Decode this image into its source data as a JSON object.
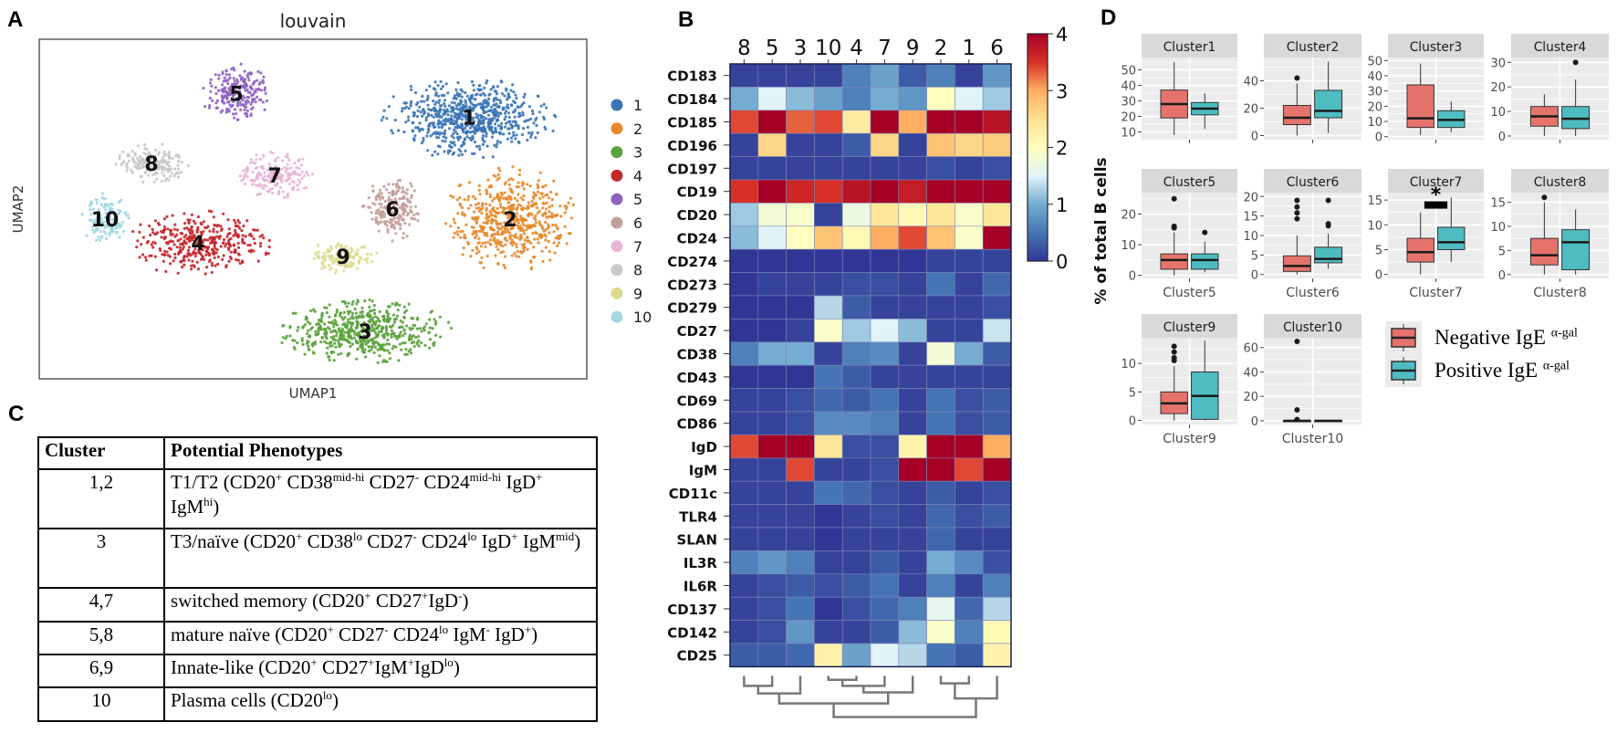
{
  "panel_labels": {
    "a": "A",
    "b": "B",
    "c": "C",
    "d": "D"
  },
  "chart_data": [
    {
      "type": "scatter",
      "panel": "A",
      "title": "louvain",
      "xlabel": "UMAP1",
      "ylabel": "UMAP2",
      "legend_position": "right",
      "clusters": [
        {
          "name": "1",
          "color": "#3b76b6",
          "center": [
            7.85,
            7.7
          ],
          "sd": [
            1.25,
            0.95
          ]
        },
        {
          "name": "2",
          "color": "#e8882a",
          "center": [
            8.6,
            4.7
          ],
          "sd": [
            0.95,
            1.2
          ]
        },
        {
          "name": "3",
          "color": "#5aa23b",
          "center": [
            5.95,
            1.4
          ],
          "sd": [
            1.25,
            0.75
          ]
        },
        {
          "name": "4",
          "color": "#c3282c",
          "center": [
            2.9,
            4.0
          ],
          "sd": [
            1.05,
            0.75
          ]
        },
        {
          "name": "5",
          "color": "#8e63c2",
          "center": [
            3.6,
            8.4
          ],
          "sd": [
            0.5,
            0.7
          ]
        },
        {
          "name": "6",
          "color": "#c4a09b",
          "center": [
            6.45,
            5.0
          ],
          "sd": [
            0.45,
            0.75
          ]
        },
        {
          "name": "7",
          "color": "#e9b5d6",
          "center": [
            4.3,
            6.0
          ],
          "sd": [
            0.55,
            0.55
          ]
        },
        {
          "name": "8",
          "color": "#c8c8c8",
          "center": [
            2.05,
            6.35
          ],
          "sd": [
            0.55,
            0.45
          ]
        },
        {
          "name": "9",
          "color": "#dcdc90",
          "center": [
            5.55,
            3.6
          ],
          "sd": [
            0.5,
            0.38
          ]
        },
        {
          "name": "10",
          "color": "#a2d8e3",
          "center": [
            1.2,
            4.7
          ],
          "sd": [
            0.35,
            0.6
          ]
        }
      ],
      "xlim": [
        0,
        10
      ],
      "ylim": [
        0,
        10
      ],
      "grid": false
    },
    {
      "type": "heatmap",
      "panel": "B",
      "columns": [
        "8",
        "5",
        "3",
        "10",
        "4",
        "7",
        "9",
        "2",
        "1",
        "6"
      ],
      "rows": [
        "CD183",
        "CD184",
        "CD185",
        "CD196",
        "CD197",
        "CD19",
        "CD20",
        "CD24",
        "CD274",
        "CD273",
        "CD279",
        "CD27",
        "CD38",
        "CD43",
        "CD69",
        "CD86",
        "IgD",
        "IgM",
        "CD11c",
        "TLR4",
        "SLAN",
        "IL3R",
        "IL6R",
        "CD137",
        "CD142",
        "CD25"
      ],
      "values": [
        [
          0.1,
          0.1,
          0.1,
          0.1,
          0.6,
          0.9,
          0.3,
          0.6,
          0.1,
          0.8
        ],
        [
          1.0,
          1.5,
          1.1,
          0.9,
          0.6,
          1.0,
          0.8,
          2.0,
          1.5,
          1.2
        ],
        [
          3.4,
          4.0,
          3.3,
          3.4,
          2.3,
          4.0,
          3.0,
          4.0,
          4.0,
          3.8
        ],
        [
          0.1,
          2.6,
          0.1,
          0.1,
          0.3,
          2.6,
          0.1,
          2.8,
          2.6,
          2.7
        ],
        [
          0.1,
          0.1,
          0.1,
          0.1,
          0.1,
          0.1,
          0.1,
          0.2,
          0.1,
          0.2
        ],
        [
          3.5,
          4.0,
          3.6,
          3.5,
          3.8,
          4.0,
          3.7,
          4.0,
          4.0,
          4.0
        ],
        [
          1.2,
          1.8,
          1.9,
          0.1,
          1.7,
          2.4,
          2.1,
          2.4,
          1.9,
          2.4
        ],
        [
          1.1,
          1.5,
          2.0,
          2.8,
          2.1,
          3.0,
          3.4,
          2.8,
          1.9,
          4.0
        ],
        [
          0.0,
          0.0,
          0.0,
          0.0,
          0.0,
          0.0,
          0.0,
          0.1,
          0.1,
          0.1
        ],
        [
          0.0,
          0.1,
          0.1,
          0.1,
          0.2,
          0.2,
          0.1,
          0.5,
          0.1,
          0.4
        ],
        [
          0.0,
          0.0,
          0.0,
          1.3,
          0.3,
          0.1,
          0.1,
          0.1,
          0.1,
          0.2
        ],
        [
          0.0,
          0.0,
          0.1,
          1.9,
          1.2,
          1.5,
          1.1,
          0.1,
          0.1,
          1.4
        ],
        [
          0.6,
          1.0,
          1.0,
          0.1,
          0.6,
          0.7,
          0.1,
          1.8,
          1.0,
          0.3
        ],
        [
          0.0,
          0.0,
          0.0,
          0.5,
          0.3,
          0.1,
          0.1,
          0.1,
          0.1,
          0.1
        ],
        [
          0.1,
          0.1,
          0.2,
          0.4,
          0.3,
          0.5,
          0.1,
          0.5,
          0.2,
          0.3
        ],
        [
          0.1,
          0.1,
          0.2,
          0.7,
          0.7,
          0.6,
          0.1,
          0.5,
          0.2,
          0.3
        ],
        [
          3.4,
          4.0,
          4.0,
          2.4,
          0.2,
          0.2,
          2.2,
          4.0,
          4.0,
          3.0
        ],
        [
          0.1,
          0.1,
          3.4,
          0.1,
          0.1,
          0.2,
          4.0,
          4.0,
          3.4,
          4.0
        ],
        [
          0.1,
          0.1,
          0.1,
          0.5,
          0.4,
          0.2,
          0.1,
          0.3,
          0.1,
          0.2
        ],
        [
          0.1,
          0.1,
          0.1,
          0.0,
          0.1,
          0.2,
          0.1,
          0.4,
          0.2,
          0.3
        ],
        [
          0.1,
          0.1,
          0.1,
          0.0,
          0.1,
          0.1,
          0.1,
          0.4,
          0.1,
          0.1
        ],
        [
          0.6,
          0.8,
          0.6,
          0.1,
          0.1,
          0.3,
          0.1,
          1.0,
          0.7,
          0.2
        ],
        [
          0.1,
          0.2,
          0.3,
          0.2,
          0.3,
          0.5,
          0.1,
          0.6,
          0.1,
          0.6
        ],
        [
          0.1,
          0.2,
          0.5,
          0.0,
          0.2,
          0.4,
          0.6,
          1.6,
          0.4,
          1.3
        ],
        [
          0.1,
          0.2,
          0.8,
          0.1,
          0.1,
          0.3,
          1.1,
          1.9,
          0.6,
          2.1
        ],
        [
          0.3,
          0.3,
          0.4,
          2.2,
          0.9,
          1.5,
          1.3,
          0.5,
          0.3,
          2.2
        ]
      ],
      "colorbar": {
        "range": [
          0,
          4
        ],
        "ticks": [
          "0",
          "1",
          "2",
          "3",
          "4"
        ],
        "colormap": "RdYlBu_r"
      },
      "dendrogram": "columns"
    },
    {
      "type": "box",
      "panel": "D",
      "ylabel": "% of total B cells",
      "groups": [
        {
          "name": "Negative IgE",
          "sup": "α-gal",
          "color": "#e5736c"
        },
        {
          "name": "Positive IgE",
          "sup": "α-gal",
          "color": "#4fbcc2"
        }
      ],
      "facets": [
        {
          "title": "Cluster1",
          "xlabel": "",
          "ylim": [
            5,
            58
          ],
          "ticks": [
            10,
            20,
            30,
            40,
            50
          ],
          "boxes": [
            {
              "min": 8,
              "q1": 19,
              "median": 28,
              "q3": 37,
              "max": 55,
              "outliers": []
            },
            {
              "min": 12,
              "q1": 21,
              "median": 25,
              "q3": 29,
              "max": 35,
              "outliers": []
            }
          ]
        },
        {
          "title": "Cluster2",
          "xlabel": "",
          "ylim": [
            -3,
            57
          ],
          "ticks": [
            0,
            20,
            40
          ],
          "boxes": [
            {
              "min": 0,
              "q1": 8,
              "median": 13,
              "q3": 22,
              "max": 38,
              "outliers": [
                42
              ]
            },
            {
              "min": 2,
              "q1": 13,
              "median": 18,
              "q3": 33,
              "max": 54,
              "outliers": []
            }
          ]
        },
        {
          "title": "Cluster3",
          "xlabel": "",
          "ylim": [
            -2,
            52
          ],
          "ticks": [
            0,
            10,
            20,
            30,
            40,
            50
          ],
          "boxes": [
            {
              "min": 1,
              "q1": 6,
              "median": 12,
              "q3": 34,
              "max": 48,
              "outliers": []
            },
            {
              "min": 3,
              "q1": 6,
              "median": 11,
              "q3": 17,
              "max": 23,
              "outliers": []
            }
          ]
        },
        {
          "title": "Cluster4",
          "xlabel": "",
          "ylim": [
            -1.5,
            32
          ],
          "ticks": [
            0,
            10,
            20,
            30
          ],
          "boxes": [
            {
              "min": 0,
              "q1": 4,
              "median": 8,
              "q3": 12,
              "max": 17,
              "outliers": []
            },
            {
              "min": 0,
              "q1": 3,
              "median": 7,
              "q3": 12,
              "max": 23,
              "outliers": [
                30
              ]
            }
          ]
        },
        {
          "title": "Cluster5",
          "xlabel": "Cluster5",
          "ylim": [
            -1,
            27
          ],
          "ticks": [
            0,
            10,
            20
          ],
          "boxes": [
            {
              "min": 0,
              "q1": 2,
              "median": 5,
              "q3": 7,
              "max": 14,
              "outliers": [
                15.5,
                16,
                25
              ]
            },
            {
              "min": 1,
              "q1": 2,
              "median": 5,
              "q3": 7,
              "max": 11,
              "outliers": [
                14
              ]
            }
          ]
        },
        {
          "title": "Cluster6",
          "xlabel": "Cluster6",
          "ylim": [
            -1,
            21
          ],
          "ticks": [
            0,
            5,
            10,
            15,
            20
          ],
          "boxes": [
            {
              "min": 0,
              "q1": 0.8,
              "median": 2.2,
              "q3": 4.8,
              "max": 10,
              "outliers": [
                14.3,
                15.8,
                17.3,
                19
              ]
            },
            {
              "min": 1.5,
              "q1": 3,
              "median": 4,
              "q3": 7,
              "max": 10.5,
              "outliers": [
                12.5,
                13,
                19
              ]
            }
          ]
        },
        {
          "title": "Cluster7",
          "xlabel": "Cluster7",
          "ylim": [
            -0.8,
            16.5
          ],
          "ticks": [
            0,
            5,
            10,
            15
          ],
          "significance": "*",
          "boxes": [
            {
              "min": 0,
              "q1": 2.5,
              "median": 4.5,
              "q3": 7.3,
              "max": 12.5,
              "outliers": []
            },
            {
              "min": 2.5,
              "q1": 5,
              "median": 6.5,
              "q3": 9.5,
              "max": 15.5,
              "outliers": []
            }
          ]
        },
        {
          "title": "Cluster8",
          "xlabel": "Cluster8",
          "ylim": [
            -0.8,
            17
          ],
          "ticks": [
            0,
            5,
            10,
            15
          ],
          "boxes": [
            {
              "min": 0,
              "q1": 2,
              "median": 4,
              "q3": 7.5,
              "max": 15,
              "outliers": [
                16
              ]
            },
            {
              "min": 0,
              "q1": 1,
              "median": 6.7,
              "q3": 9.3,
              "max": 13.5,
              "outliers": []
            }
          ]
        },
        {
          "title": "Cluster9",
          "xlabel": "Cluster9",
          "ylim": [
            -0.7,
            14.5
          ],
          "ticks": [
            0,
            5,
            10
          ],
          "boxes": [
            {
              "min": 0,
              "q1": 1.2,
              "median": 3,
              "q3": 5,
              "max": 9.5,
              "outliers": [
                10.5,
                11,
                12,
                13
              ]
            },
            {
              "min": 0,
              "q1": 0.2,
              "median": 4.3,
              "q3": 8.5,
              "max": 14,
              "outliers": []
            }
          ]
        },
        {
          "title": "Cluster10",
          "xlabel": "Cluster10",
          "ylim": [
            -3,
            68
          ],
          "ticks": [
            0,
            20,
            40,
            60
          ],
          "boxes": [
            {
              "min": 0,
              "q1": 0,
              "median": 0,
              "q3": 0,
              "max": 0,
              "outliers": [
                1,
                9,
                65
              ]
            },
            {
              "min": 0,
              "q1": 0,
              "median": 0,
              "q3": 0,
              "max": 0,
              "outliers": []
            }
          ]
        }
      ]
    }
  ],
  "table": {
    "headers": [
      "Cluster",
      "Potential Phenotypes"
    ],
    "rows": [
      {
        "cluster": "1,2",
        "phenotype": [
          [
            "T1/T2 (CD20",
            ""
          ],
          [
            "",
            "+"
          ],
          [
            " CD38",
            ""
          ],
          [
            "",
            "mid-hi"
          ],
          [
            " CD27",
            ""
          ],
          [
            "",
            "-"
          ],
          [
            " CD24",
            ""
          ],
          [
            "",
            "mid-hi"
          ],
          [
            " IgD",
            ""
          ],
          [
            "",
            "+"
          ],
          [
            " IgM",
            ""
          ],
          [
            "",
            "hi"
          ],
          [
            ")",
            ""
          ]
        ]
      },
      {
        "cluster": "3",
        "phenotype": [
          [
            "T3/naïve (CD20",
            ""
          ],
          [
            "",
            "+"
          ],
          [
            " CD38",
            ""
          ],
          [
            "",
            "lo"
          ],
          [
            " CD27",
            ""
          ],
          [
            "",
            "-"
          ],
          [
            " CD24",
            ""
          ],
          [
            "",
            "lo"
          ],
          [
            " IgD",
            ""
          ],
          [
            "",
            "+"
          ],
          [
            " IgM",
            ""
          ],
          [
            "",
            "mid"
          ],
          [
            ")",
            ""
          ]
        ]
      },
      {
        "cluster": "4,7",
        "phenotype": [
          [
            "switched memory (CD20",
            ""
          ],
          [
            "",
            "+"
          ],
          [
            " CD27",
            ""
          ],
          [
            "",
            "+"
          ],
          [
            "IgD",
            ""
          ],
          [
            "",
            "-"
          ],
          [
            ")",
            ""
          ]
        ]
      },
      {
        "cluster": "5,8",
        "phenotype": [
          [
            "mature naïve (CD20",
            ""
          ],
          [
            "",
            "+"
          ],
          [
            " CD27",
            ""
          ],
          [
            "",
            "-"
          ],
          [
            " CD24",
            ""
          ],
          [
            "",
            "lo"
          ],
          [
            " IgM",
            ""
          ],
          [
            "",
            "-"
          ],
          [
            " IgD",
            ""
          ],
          [
            "",
            "+"
          ],
          [
            ")",
            ""
          ]
        ]
      },
      {
        "cluster": "6,9",
        "phenotype": [
          [
            "Innate-like (CD20",
            ""
          ],
          [
            "",
            "+"
          ],
          [
            " CD27",
            ""
          ],
          [
            "",
            "+"
          ],
          [
            "IgM",
            ""
          ],
          [
            "",
            "+"
          ],
          [
            "IgD",
            ""
          ],
          [
            "",
            "lo"
          ],
          [
            ")",
            ""
          ]
        ]
      },
      {
        "cluster": "10",
        "phenotype": [
          [
            "Plasma cells (CD20",
            ""
          ],
          [
            "",
            "lo"
          ],
          [
            ")",
            ""
          ]
        ]
      }
    ]
  }
}
